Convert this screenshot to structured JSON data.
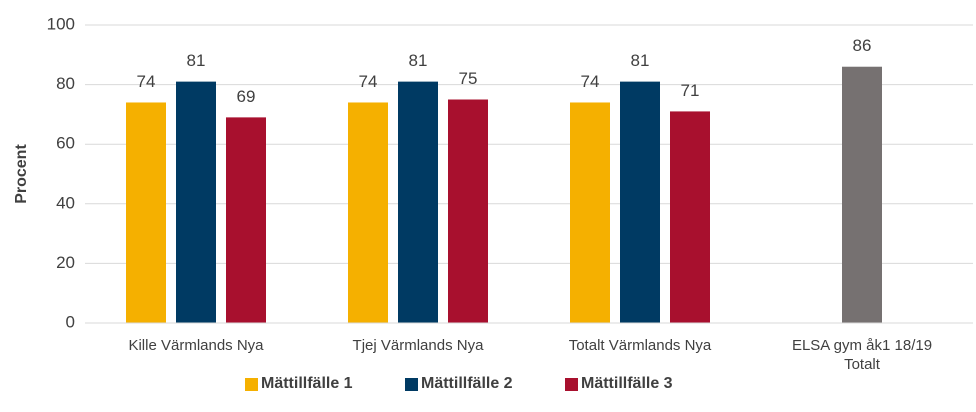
{
  "chart_data": {
    "type": "bar",
    "y_label": "Procent",
    "categories": [
      "Kille Värmlands Nya",
      "Tjej Värmlands Nya",
      "Totalt Värmlands Nya",
      "ELSA gym åk1 18/19 Totalt"
    ],
    "series": [
      {
        "name": "Mättillfälle 1",
        "color": "#f5b000",
        "values": [
          74,
          74,
          74,
          null
        ]
      },
      {
        "name": "Mättillfälle 2",
        "color": "#003a63",
        "values": [
          81,
          81,
          81,
          86
        ],
        "point_colors": [
          null,
          null,
          null,
          "#767171"
        ]
      },
      {
        "name": "Mättillfälle 3",
        "color": "#a8102e",
        "values": [
          69,
          75,
          71,
          null
        ]
      }
    ],
    "ylim": [
      0,
      100
    ],
    "yticks": [
      0,
      20,
      40,
      60,
      80,
      100
    ],
    "grid": true,
    "legend": "bottom"
  }
}
